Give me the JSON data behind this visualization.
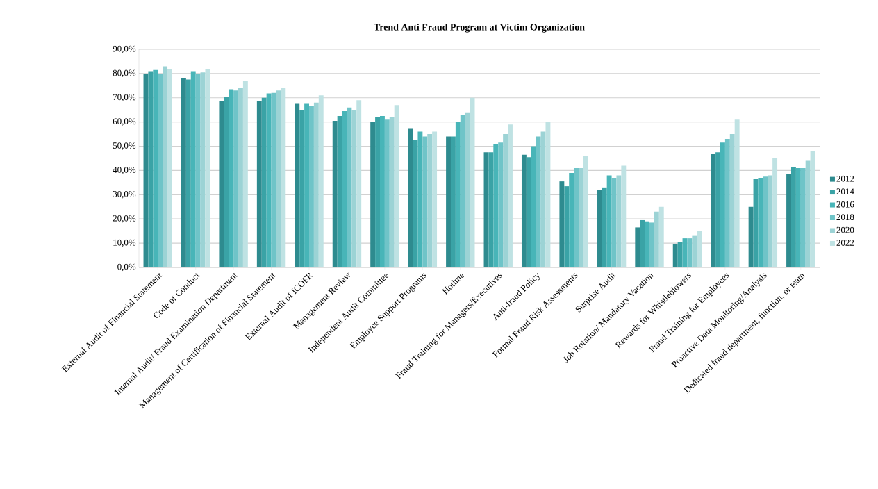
{
  "chart_data": {
    "type": "bar",
    "title": "Trend Anti Fraud Program at Victim Organization",
    "categories": [
      "External Audit of Financial Statement",
      "Code of Conduct",
      "Internal Audit/ Fraud Examination Department",
      "Management of Certification of Financial Statement",
      "External Audit of ICOFR",
      "Management Review",
      "Independent Audit Committee",
      "Employee Support Programs",
      "Hotline",
      "Fraud Training for Managers/Executives",
      "Anti-fraud Policy",
      "Formal Fraud Risk Assessments",
      "Surprise Audit",
      "Job Rotation/ Mandatory Vacation",
      "Rewards for Whistleblowers",
      "Fraud Training for Employees",
      "Proactive Data Monitoring/Analysis",
      "Dedicated fraud department, function, or team"
    ],
    "series": [
      {
        "name": "2012",
        "color": "#2e8b8f",
        "values": [
          80,
          78,
          68.5,
          68.5,
          67.5,
          60.5,
          60,
          57.5,
          54,
          47.5,
          46.5,
          35.5,
          32,
          16.5,
          9.5,
          47,
          25,
          38.5
        ]
      },
      {
        "name": "2014",
        "color": "#3aa3a6",
        "values": [
          81,
          77.5,
          70.5,
          70,
          65,
          62.5,
          62,
          52.5,
          54,
          47.5,
          45.5,
          33.5,
          33,
          19.5,
          10.5,
          47.5,
          36.5,
          41.5
        ]
      },
      {
        "name": "2016",
        "color": "#48b5b8",
        "values": [
          81.5,
          81,
          73.5,
          71.8,
          67.5,
          64.5,
          62.5,
          56,
          60,
          51,
          50,
          39,
          38,
          19,
          12,
          51.5,
          37,
          41
        ]
      },
      {
        "name": "2018",
        "color": "#6fc4c8",
        "values": [
          80,
          80,
          73,
          72,
          66.5,
          66,
          61,
          54,
          63,
          51.5,
          54,
          41,
          37,
          18.5,
          12,
          53,
          37.5,
          41
        ]
      },
      {
        "name": "2020",
        "color": "#9cd3d5",
        "values": [
          83,
          80.5,
          74,
          73,
          68,
          65,
          62,
          55,
          64,
          55,
          56,
          41,
          38,
          23,
          13,
          55,
          38,
          44
        ]
      },
      {
        "name": "2022",
        "color": "#bfe2e3",
        "values": [
          82,
          82,
          77,
          74,
          71,
          69,
          67,
          56,
          70,
          59,
          60,
          46,
          42,
          25,
          15,
          61,
          45,
          48
        ]
      }
    ],
    "ylim": [
      0,
      90
    ],
    "yticks": [
      {
        "value": 0,
        "label": "0,0%"
      },
      {
        "value": 10,
        "label": "10,0%"
      },
      {
        "value": 20,
        "label": "20,0%"
      },
      {
        "value": 30,
        "label": "30,0%"
      },
      {
        "value": 40,
        "label": "40,0%"
      },
      {
        "value": 50,
        "label": "50,0%"
      },
      {
        "value": 60,
        "label": "60,0%"
      },
      {
        "value": 70,
        "label": "70,0%"
      },
      {
        "value": 80,
        "label": "80,0%"
      },
      {
        "value": 90,
        "label": "90,0%"
      }
    ],
    "grid": "y",
    "legend": "right"
  }
}
